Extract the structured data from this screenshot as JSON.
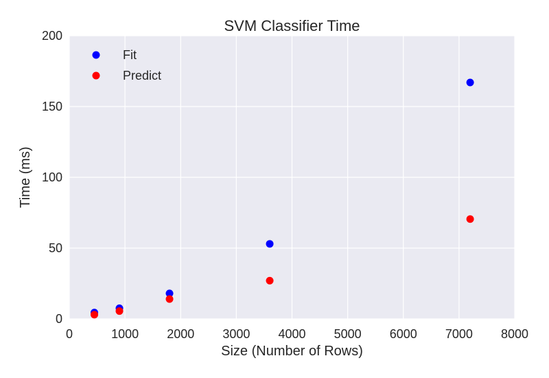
{
  "chart_data": {
    "type": "scatter",
    "title": "SVM Classifier Time",
    "xlabel": "Size (Number of Rows)",
    "ylabel": "Time (ms)",
    "xlim": [
      0,
      8000
    ],
    "ylim": [
      0,
      200
    ],
    "xticks": [
      0,
      1000,
      2000,
      3000,
      4000,
      5000,
      6000,
      7000,
      8000
    ],
    "yticks": [
      0,
      50,
      100,
      150,
      200
    ],
    "grid": true,
    "legend_position": "top-left",
    "colors": {
      "background": "#eaeaf2",
      "grid": "#ffffff"
    },
    "series": [
      {
        "name": "Fit",
        "color": "#0000ff",
        "x": [
          450,
          900,
          1800,
          3600,
          7200
        ],
        "y": [
          4.5,
          7.5,
          18,
          53,
          167
        ]
      },
      {
        "name": "Predict",
        "color": "#ff0000",
        "x": [
          450,
          900,
          1800,
          3600,
          7200
        ],
        "y": [
          3,
          5.5,
          14,
          27,
          70.5
        ]
      }
    ]
  }
}
